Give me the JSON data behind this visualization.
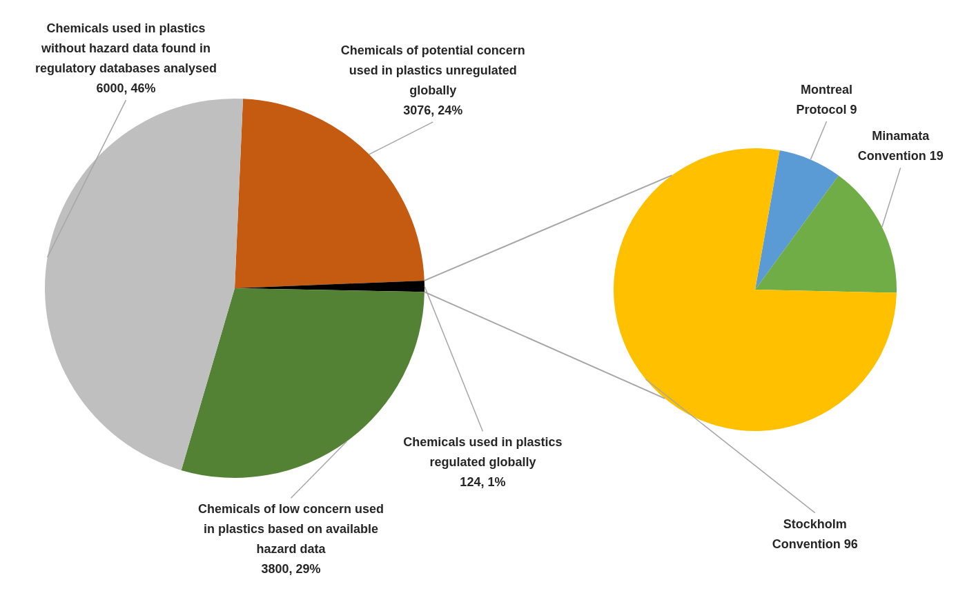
{
  "chart_data": [
    {
      "type": "pie",
      "categories": [
        "Chemicals of potential concern used in plastics unregulated globally",
        "Chemicals used in plastics regulated globally",
        "Chemicals of low concern used in plastics based on available hazard data",
        "Chemicals used in plastics without hazard data found in regulatory databases analysed"
      ],
      "values": [
        3076,
        124,
        3800,
        6000
      ],
      "colors": [
        "#c55a11",
        "#000000",
        "#548235",
        "#bfbfbf"
      ],
      "value_labels": [
        "3076, 24%",
        "124, 1%",
        "3800, 29%",
        "6000, 46%"
      ],
      "legend": false
    },
    {
      "type": "pie",
      "categories": [
        "Montreal Protocol",
        "Minamata Convention",
        "Stockholm Convention"
      ],
      "values": [
        9,
        19,
        96
      ],
      "colors": [
        "#5b9bd5",
        "#70ad47",
        "#ffc000"
      ],
      "value_labels": [
        "9",
        "19",
        "96"
      ],
      "legend": false
    }
  ]
}
